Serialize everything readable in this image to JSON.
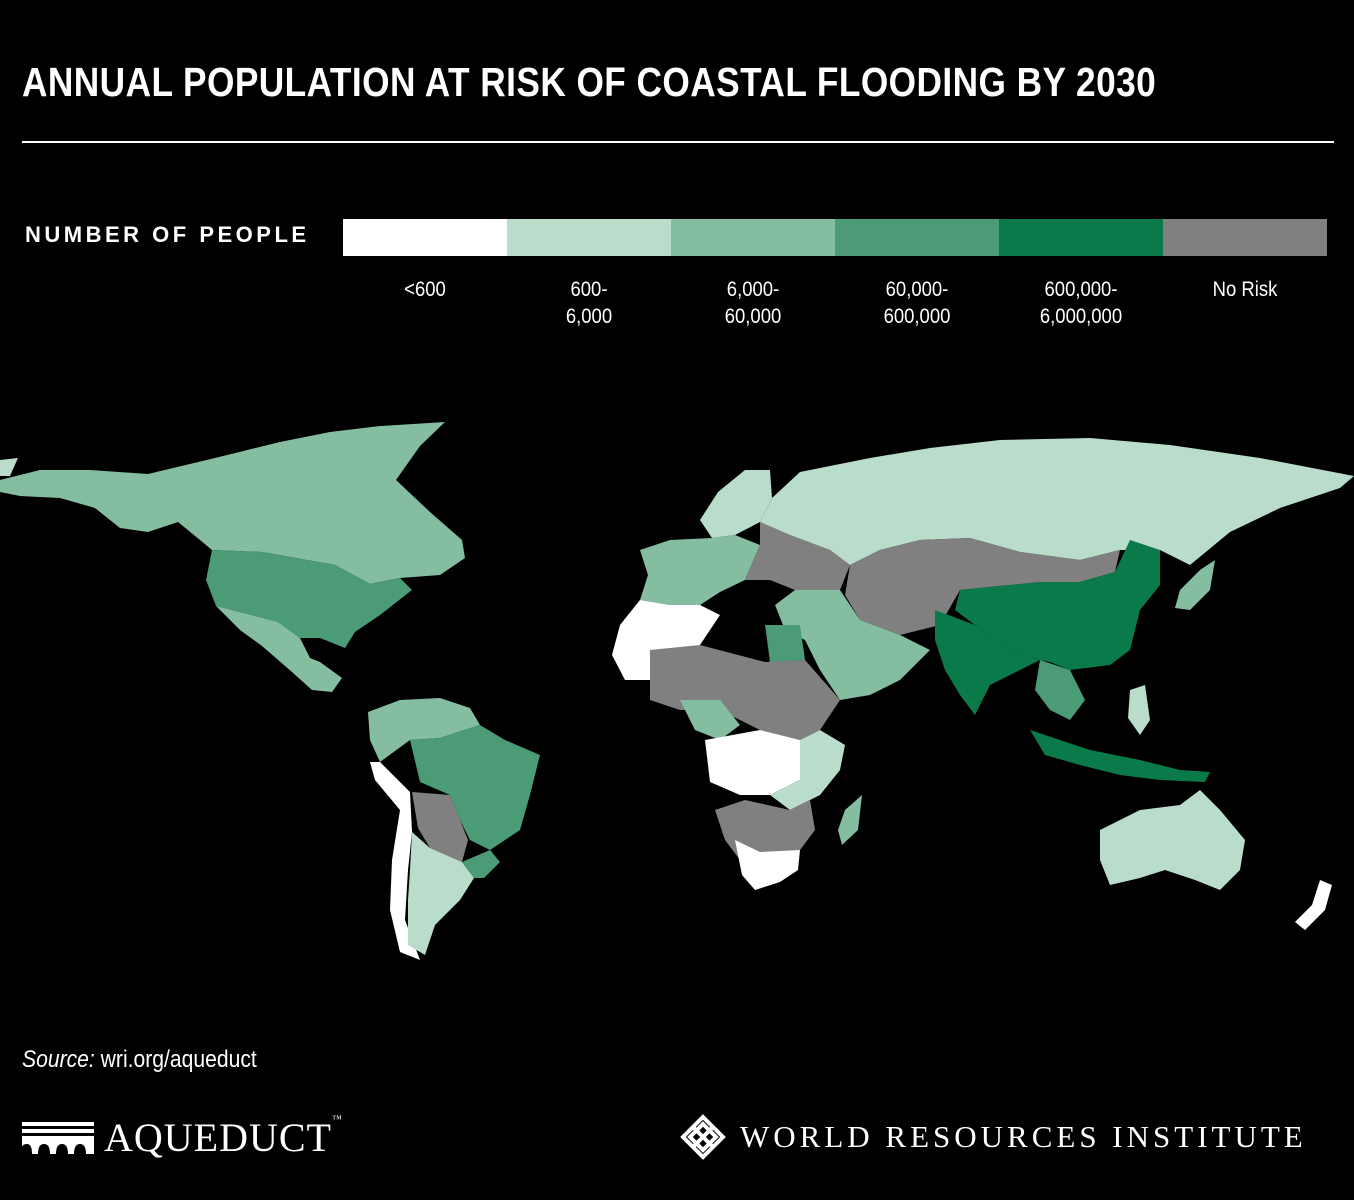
{
  "title": "ANNUAL POPULATION AT RISK OF COASTAL FLOODING BY 2030",
  "legend": {
    "title": "NUMBER OF PEOPLE",
    "classes": [
      {
        "label": "<600",
        "color": "#ffffff"
      },
      {
        "label": "600-\n6,000",
        "color": "#b9dccb"
      },
      {
        "label": "6,000-\n60,000",
        "color": "#84bda0"
      },
      {
        "label": "60,000-\n600,000",
        "color": "#4a9b76"
      },
      {
        "label": "600,000-\n6,000,000",
        "color": "#0a7a4b"
      },
      {
        "label": "No Risk",
        "color": "#808080"
      }
    ]
  },
  "regions": [
    {
      "name": "Canada",
      "class": 2
    },
    {
      "name": "Alaska",
      "class": 2
    },
    {
      "name": "Greenland",
      "class": 1
    },
    {
      "name": "United States",
      "class": 3
    },
    {
      "name": "Mexico",
      "class": 2
    },
    {
      "name": "Brazil",
      "class": 3
    },
    {
      "name": "Colombia-Venezuela",
      "class": 2
    },
    {
      "name": "Peru-Chile coast",
      "class": 0
    },
    {
      "name": "Bolivia-Paraguay",
      "class": 5
    },
    {
      "name": "Argentina",
      "class": 1
    },
    {
      "name": "Uruguay-South Brazil",
      "class": 3
    },
    {
      "name": "Europe",
      "class": 2
    },
    {
      "name": "Scandinavia",
      "class": 1
    },
    {
      "name": "Eastern Europe",
      "class": 5
    },
    {
      "name": "Russia",
      "class": 1
    },
    {
      "name": "Central Asia",
      "class": 5
    },
    {
      "name": "Middle East",
      "class": 2
    },
    {
      "name": "Egypt",
      "class": 3
    },
    {
      "name": "Sahara west",
      "class": 0
    },
    {
      "name": "Sahel",
      "class": 5
    },
    {
      "name": "Nigeria",
      "class": 2
    },
    {
      "name": "Central Africa",
      "class": 0
    },
    {
      "name": "East Africa",
      "class": 1
    },
    {
      "name": "Southern Africa interior",
      "class": 5
    },
    {
      "name": "South Africa",
      "class": 0
    },
    {
      "name": "Madagascar",
      "class": 2
    },
    {
      "name": "India",
      "class": 4
    },
    {
      "name": "China",
      "class": 4
    },
    {
      "name": "Mongolia",
      "class": 5
    },
    {
      "name": "Japan",
      "class": 2
    },
    {
      "name": "Southeast Asia",
      "class": 3
    },
    {
      "name": "Indonesia",
      "class": 4
    },
    {
      "name": "Australia",
      "class": 1
    },
    {
      "name": "New Zealand",
      "class": 0
    }
  ],
  "source": {
    "label": "Source:",
    "text": " wri.org/aqueduct"
  },
  "logos": {
    "left": {
      "text": "AQUEDUCT",
      "tm": "™"
    },
    "right": {
      "text": "WORLD RESOURCES INSTITUTE"
    }
  }
}
